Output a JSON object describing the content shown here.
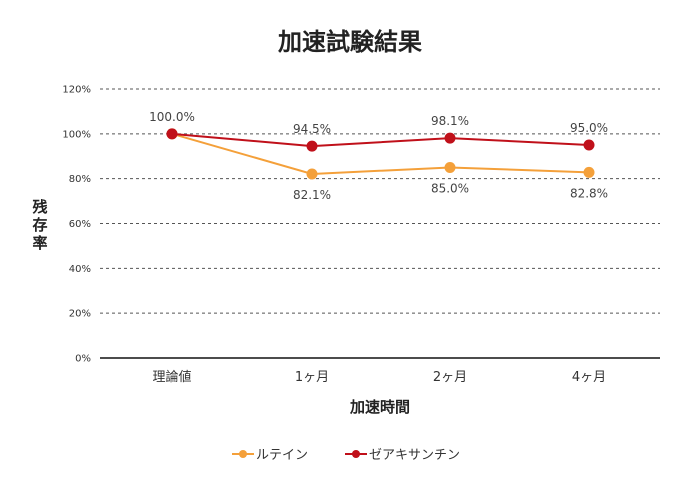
{
  "chart_data": {
    "type": "line",
    "title": "加速試験結果",
    "xlabel": "加速時間",
    "ylabel": "残存率",
    "categories": [
      "理論値",
      "1ヶ月",
      "2ヶ月",
      "4ヶ月"
    ],
    "ylim": [
      0,
      120
    ],
    "yticks": [
      "0%",
      "20%",
      "40%",
      "60%",
      "80%",
      "100%",
      "120%"
    ],
    "grid": true,
    "legend_position": "bottom",
    "series": [
      {
        "name": "ルテイン",
        "color": "#f4a03a",
        "values": [
          100.0,
          82.1,
          85.0,
          82.8
        ],
        "labels": [
          "",
          "82.1%",
          "85.0%",
          "82.8%"
        ]
      },
      {
        "name": "ゼアキサンチン",
        "color": "#c0101a",
        "values": [
          100.0,
          94.5,
          98.1,
          95.0
        ],
        "labels": [
          "100.0%",
          "94.5%",
          "98.1%",
          "95.0%"
        ]
      }
    ]
  }
}
